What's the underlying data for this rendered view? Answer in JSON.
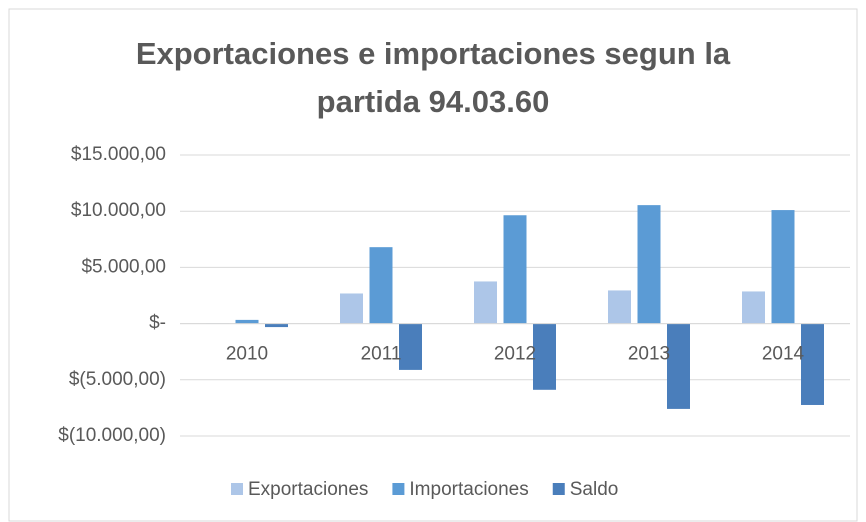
{
  "chart_data": {
    "type": "bar",
    "title": "Exportaciones e importaciones segun la partida 94.03.60",
    "categories": [
      "2010",
      "2011",
      "2012",
      "2013",
      "2014"
    ],
    "series": [
      {
        "name": "Exportaciones",
        "color": "#adc6e8",
        "values": [
          20,
          2680,
          3750,
          2950,
          2860
        ]
      },
      {
        "name": "Importaciones",
        "color": "#5b9bd5",
        "values": [
          330,
          6800,
          9640,
          10540,
          10100
        ]
      },
      {
        "name": "Saldo",
        "color": "#4a7ebb",
        "values": [
          -310,
          -4120,
          -5890,
          -7590,
          -7240
        ]
      }
    ],
    "ylim": [
      -10000,
      15000
    ],
    "yticks": [
      {
        "value": -10000,
        "label": "$(10.000,00)"
      },
      {
        "value": -5000,
        "label": "$(5.000,00)"
      },
      {
        "value": 0,
        "label": "$-"
      },
      {
        "value": 5000,
        "label": "$5.000,00"
      },
      {
        "value": 10000,
        "label": "$10.000,00"
      },
      {
        "value": 15000,
        "label": "$15.000,00"
      }
    ],
    "grid": true,
    "legend": "bottom"
  }
}
